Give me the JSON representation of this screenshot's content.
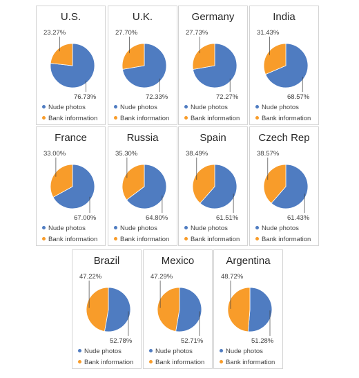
{
  "colors": {
    "nude": "#4f7cc1",
    "bank": "#f89c2a",
    "leader": "#404040"
  },
  "chart_data": [
    {
      "type": "pie",
      "title": "U.S.",
      "categories": [
        "Nude photos",
        "Bank information"
      ],
      "values": [
        76.73,
        23.27
      ],
      "labels": [
        "76.73%",
        "23.27%"
      ],
      "legend_placement": "bottom"
    },
    {
      "type": "pie",
      "title": "U.K.",
      "categories": [
        "Nude photos",
        "Bank information"
      ],
      "values": [
        72.33,
        27.7
      ],
      "labels": [
        "72.33%",
        "27.70%"
      ],
      "legend_placement": "bottom"
    },
    {
      "type": "pie",
      "title": "Germany",
      "categories": [
        "Nude photos",
        "Bank information"
      ],
      "values": [
        72.27,
        27.73
      ],
      "labels": [
        "72.27%",
        "27.73%"
      ],
      "legend_placement": "bottom"
    },
    {
      "type": "pie",
      "title": "India",
      "categories": [
        "Nude photos",
        "Bank information"
      ],
      "values": [
        68.57,
        31.43
      ],
      "labels": [
        "68.57%",
        "31.43%"
      ],
      "legend_placement": "bottom"
    },
    {
      "type": "pie",
      "title": "France",
      "categories": [
        "Nude photos",
        "Bank information"
      ],
      "values": [
        67.0,
        33.0
      ],
      "labels": [
        "67.00%",
        "33.00%"
      ],
      "legend_placement": "bottom"
    },
    {
      "type": "pie",
      "title": "Russia",
      "categories": [
        "Nude photos",
        "Bank information"
      ],
      "values": [
        64.8,
        35.3
      ],
      "labels": [
        "64.80%",
        "35.30%"
      ],
      "legend_placement": "bottom"
    },
    {
      "type": "pie",
      "title": "Spain",
      "categories": [
        "Nude photos",
        "Bank information"
      ],
      "values": [
        61.51,
        38.49
      ],
      "labels": [
        "61.51%",
        "38.49%"
      ],
      "legend_placement": "bottom"
    },
    {
      "type": "pie",
      "title": "Czech Rep",
      "categories": [
        "Nude photos",
        "Bank information"
      ],
      "values": [
        61.43,
        38.57
      ],
      "labels": [
        "61.43%",
        "38.57%"
      ],
      "legend_placement": "bottom"
    },
    {
      "type": "pie",
      "title": "Brazil",
      "categories": [
        "Nude photos",
        "Bank information"
      ],
      "values": [
        52.78,
        47.22
      ],
      "labels": [
        "52.78%",
        "47.22%"
      ],
      "legend_placement": "bottom"
    },
    {
      "type": "pie",
      "title": "Mexico",
      "categories": [
        "Nude photos",
        "Bank information"
      ],
      "values": [
        52.71,
        47.29
      ],
      "labels": [
        "52.71%",
        "47.29%"
      ],
      "legend_placement": "bottom"
    },
    {
      "type": "pie",
      "title": "Argentina",
      "categories": [
        "Nude photos",
        "Bank information"
      ],
      "values": [
        51.28,
        48.72
      ],
      "labels": [
        "51.28%",
        "48.72%"
      ],
      "legend_placement": "bottom"
    }
  ]
}
